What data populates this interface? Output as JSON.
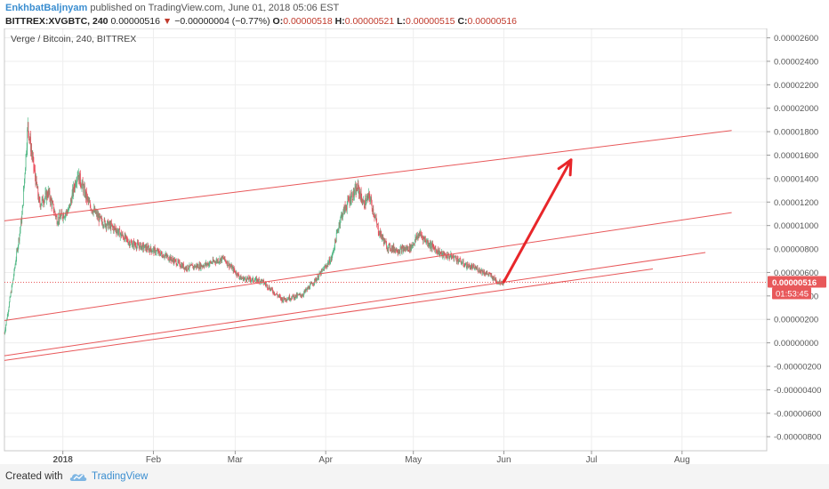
{
  "header": {
    "author": "EnkhbatBaljnyam",
    "published": "published on TradingView.com, June 01, 2018 05:06 EST",
    "symbol": "BITTREX:XVGBTC, 240",
    "last": "0.00000516",
    "change": "−0.00000004 (−0.77%)",
    "o_label": "O:",
    "o_val": "0.00000518",
    "h_label": "H:",
    "h_val": "0.00000521",
    "l_label": "L:",
    "l_val": "0.00000515",
    "c_label": "C:",
    "c_val": "0.00000516",
    "down_arrow_icon": "down-triangle-icon"
  },
  "footer": {
    "created_with": "Created with",
    "brand": "TradingView",
    "logo_icon": "tradingview-cloud-icon"
  },
  "colors": {
    "candle_up": "#53b987",
    "candle_down": "#eb4d5c",
    "trendline": "#e8585a",
    "arrow": "#e8262a",
    "price_tag": "#e8585a",
    "brand": "#3b8ed0"
  },
  "chart_data": {
    "type": "candlestick",
    "title": "Verge / Bitcoin, 240, BITTREX",
    "xlabel": "",
    "ylabel": "",
    "x_ticks": [
      "2018",
      "Feb",
      "Mar",
      "Apr",
      "May",
      "Jun",
      "Jul",
      "Aug"
    ],
    "x_tick_dates": [
      "2018-01-01",
      "2018-02-01",
      "2018-03-01",
      "2018-04-01",
      "2018-05-01",
      "2018-06-01",
      "2018-07-01",
      "2018-08-01"
    ],
    "x_range": [
      "2017-12-12",
      "2018-08-30"
    ],
    "y_range": [
      -9.2e-06,
      2.68e-05
    ],
    "y_ticks": [
      "0.00002600",
      "0.00002400",
      "0.00002200",
      "0.00002000",
      "0.00001800",
      "0.00001600",
      "0.00001400",
      "0.00001200",
      "0.00001000",
      "0.00000800",
      "0.00000600",
      "0.00000400",
      "0.00000200",
      "0.00000000",
      "-0.00000200",
      "-0.00000400",
      "-0.00000600",
      "-0.00000800"
    ],
    "y_tick_values": [
      2.6e-05,
      2.4e-05,
      2.2e-05,
      2e-05,
      1.8e-05,
      1.6e-05,
      1.4e-05,
      1.2e-05,
      1e-05,
      8e-06,
      6e-06,
      4e-06,
      2e-06,
      0.0,
      -2e-06,
      -4e-06,
      -6e-06,
      -8e-06
    ],
    "grid": true,
    "price_series": {
      "name": "XVGBTC",
      "dates": [
        "2017-12-12",
        "2017-12-15",
        "2017-12-18",
        "2017-12-20",
        "2017-12-22",
        "2017-12-24",
        "2017-12-27",
        "2017-12-30",
        "2018-01-03",
        "2018-01-06",
        "2018-01-10",
        "2018-01-14",
        "2018-01-19",
        "2018-01-24",
        "2018-02-01",
        "2018-02-06",
        "2018-02-12",
        "2018-02-18",
        "2018-02-25",
        "2018-03-03",
        "2018-03-10",
        "2018-03-17",
        "2018-03-24",
        "2018-03-29",
        "2018-04-03",
        "2018-04-06",
        "2018-04-09",
        "2018-04-12",
        "2018-04-14",
        "2018-04-16",
        "2018-04-19",
        "2018-04-22",
        "2018-04-26",
        "2018-04-30",
        "2018-05-03",
        "2018-05-07",
        "2018-05-11",
        "2018-05-15",
        "2018-05-19",
        "2018-05-23",
        "2018-05-27",
        "2018-05-30",
        "2018-06-01"
      ],
      "values": [
        8e-07,
        5.5e-06,
        1.08e-05,
        1.85e-05,
        1.5e-05,
        1.18e-05,
        1.28e-05,
        1.05e-05,
        1.13e-05,
        1.45e-05,
        1.18e-05,
        1.04e-05,
        9.7e-06,
        8.5e-06,
        7.9e-06,
        7.3e-06,
        6.4e-06,
        6.6e-06,
        7.2e-06,
        5.5e-06,
        5.3e-06,
        3.7e-06,
        4.1e-06,
        5.5e-06,
        7.2e-06,
        1.06e-05,
        1.22e-05,
        1.32e-05,
        1.18e-05,
        1.25e-05,
        9.6e-06,
        8.2e-06,
        7.9e-06,
        8.1e-06,
        9.3e-06,
        8.3e-06,
        7.5e-06,
        7.3e-06,
        6.6e-06,
        6.3e-06,
        5.8e-06,
        5.2e-06,
        5.2e-06
      ]
    },
    "last_price_tag": "0.00000516",
    "countdown_tag": "01:53:45",
    "trendlines": [
      {
        "start": [
          "2017-12-12",
          1.04e-05
        ],
        "end": [
          "2018-08-18",
          1.81e-05
        ]
      },
      {
        "start": [
          "2017-12-12",
          1.9e-06
        ],
        "end": [
          "2018-08-18",
          1.11e-05
        ]
      },
      {
        "start": [
          "2017-12-12",
          -1.1e-06
        ],
        "end": [
          "2018-08-09",
          7.7e-06
        ]
      },
      {
        "start": [
          "2017-12-12",
          -1.5e-06
        ],
        "end": [
          "2018-07-22",
          6.3e-06
        ]
      }
    ],
    "projection_arrow": {
      "start": [
        "2018-06-01",
        5.2e-06
      ],
      "end": [
        "2018-06-24",
        1.56e-05
      ]
    }
  }
}
